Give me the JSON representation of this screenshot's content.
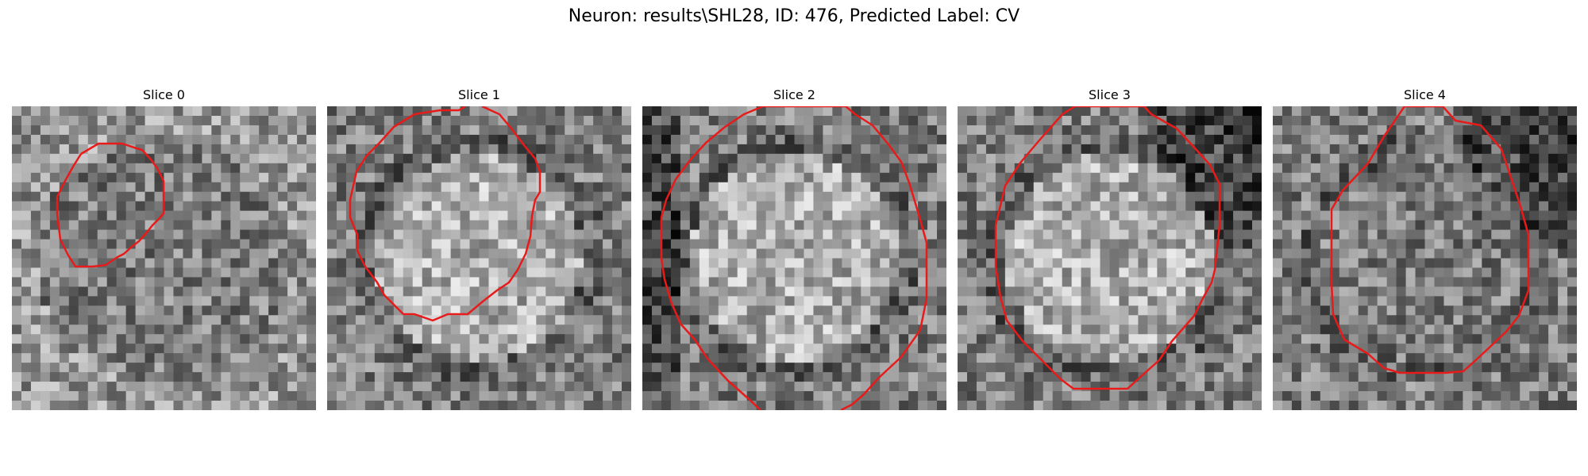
{
  "figure": {
    "title": "Neuron: results\\SHL28, ID: 476, Predicted Label: CV"
  },
  "colors": {
    "contour": "#e81a1a",
    "background": "#ffffff"
  },
  "panels": [
    {
      "title": "Slice 0",
      "center_brightness": "mid",
      "surround_brightness": "mid-light",
      "dark_region": "none"
    },
    {
      "title": "Slice 1",
      "center_brightness": "light",
      "surround_brightness": "mid",
      "dark_region": "none"
    },
    {
      "title": "Slice 2",
      "center_brightness": "light",
      "surround_brightness": "mid",
      "dark_region": "left-edge"
    },
    {
      "title": "Slice 3",
      "center_brightness": "light",
      "surround_brightness": "mid",
      "dark_region": "top-right"
    },
    {
      "title": "Slice 4",
      "center_brightness": "mid",
      "surround_brightness": "mid",
      "dark_region": "top-right"
    }
  ]
}
